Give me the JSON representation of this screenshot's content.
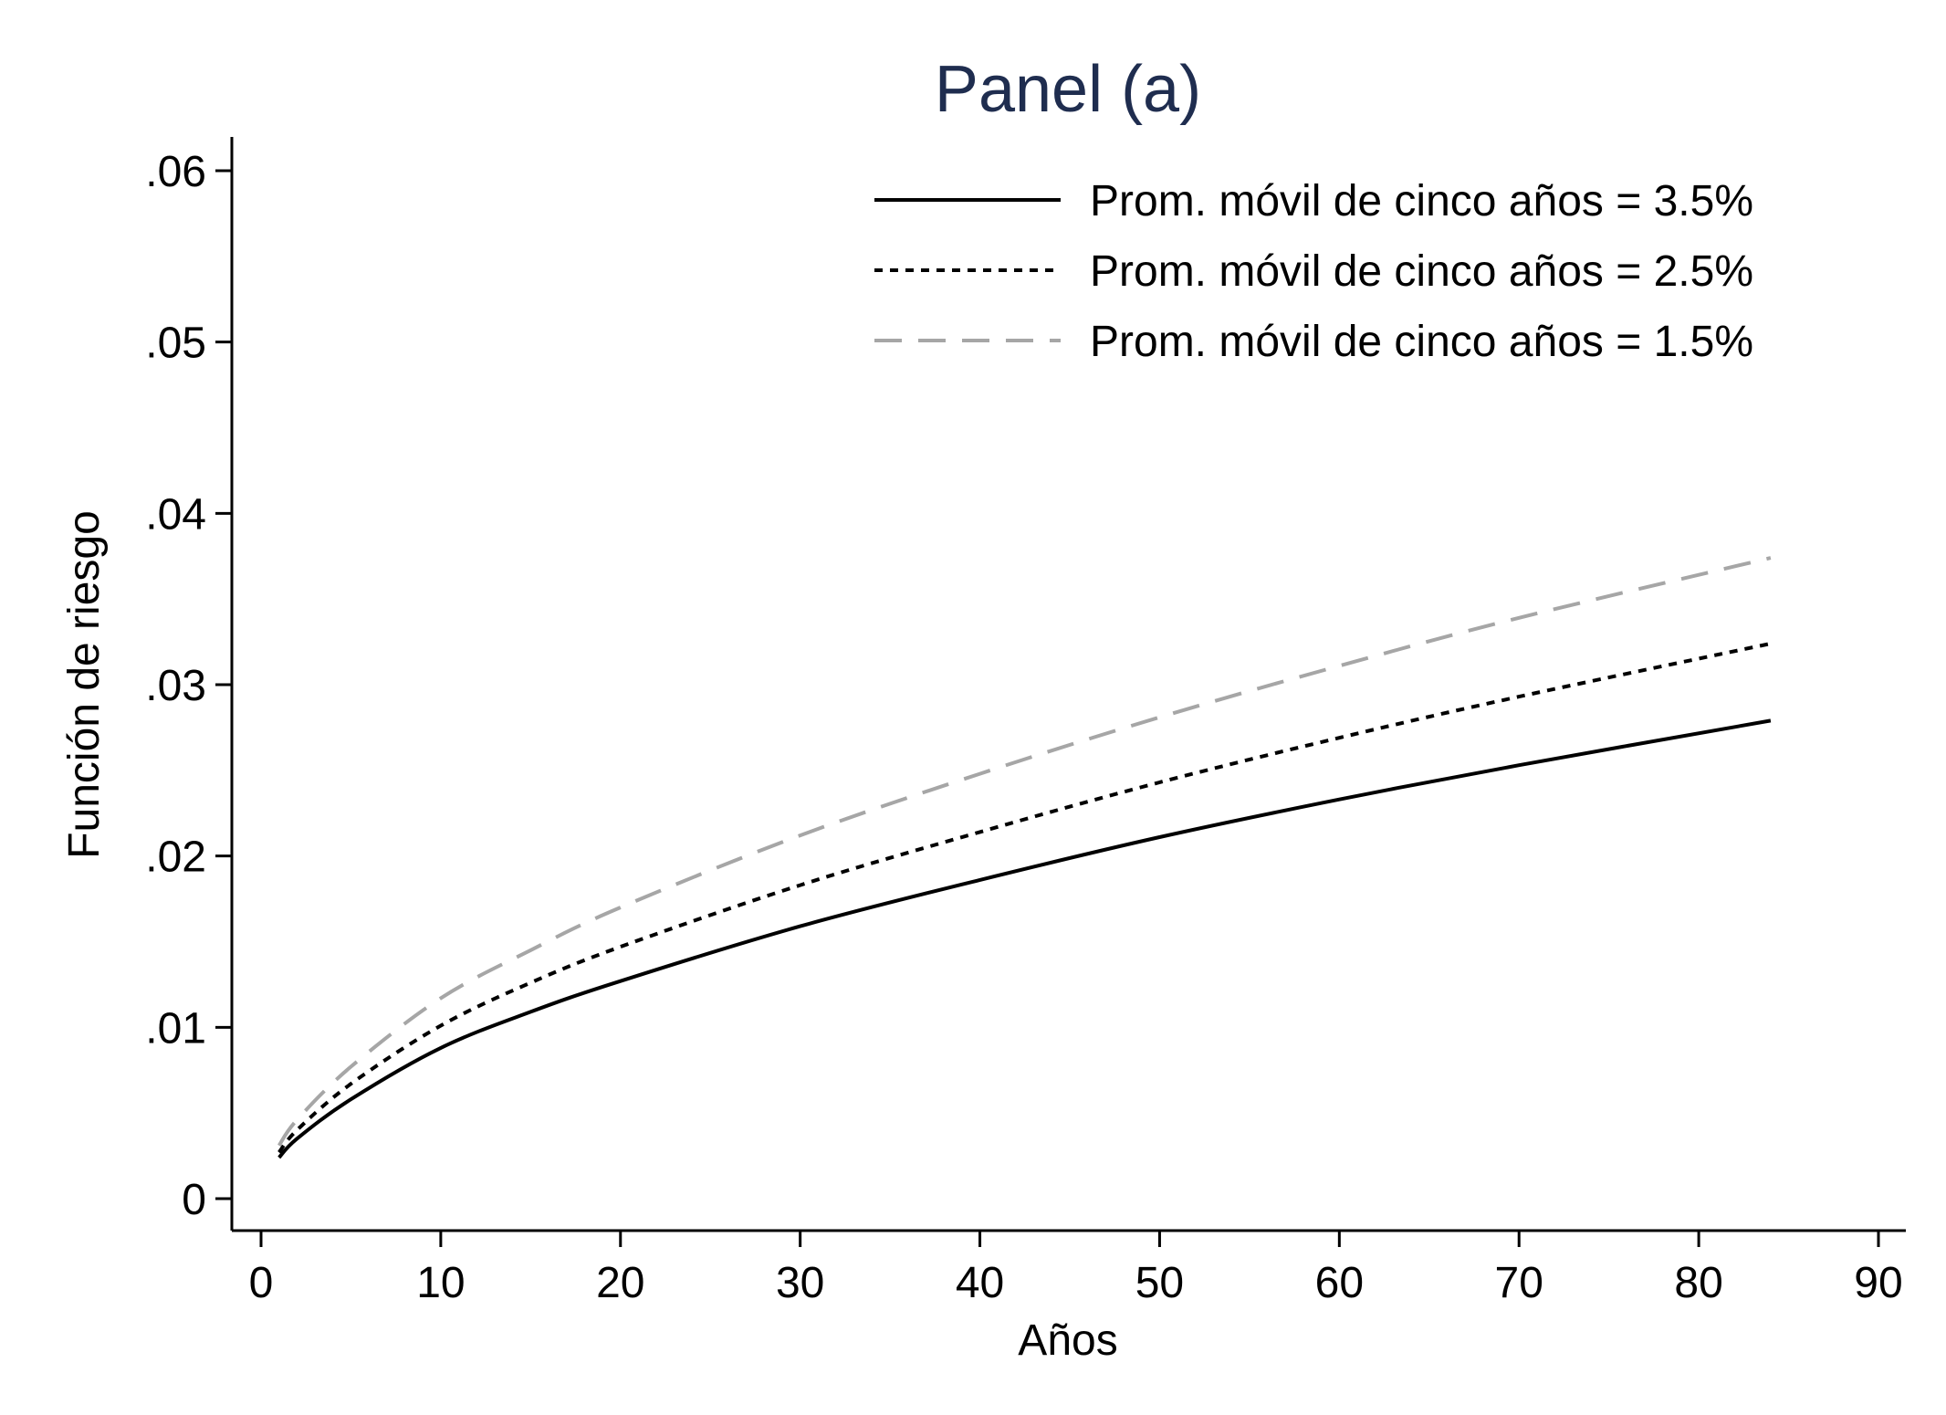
{
  "chart_data": {
    "type": "line",
    "title": "Panel (a)",
    "xlabel": "Años",
    "ylabel": "Función de riesgo",
    "xlim": [
      0,
      90
    ],
    "ylim": [
      0,
      0.06
    ],
    "xticks": [
      0,
      10,
      20,
      30,
      40,
      50,
      60,
      70,
      80,
      90
    ],
    "xtick_labels": [
      "0",
      "10",
      "20",
      "30",
      "40",
      "50",
      "60",
      "70",
      "80",
      "90"
    ],
    "yticks": [
      0,
      0.01,
      0.02,
      0.03,
      0.04,
      0.05,
      0.06
    ],
    "ytick_labels": [
      "0",
      ".01",
      ".02",
      ".03",
      ".04",
      ".05",
      ".06"
    ],
    "grid": false,
    "legend_position": "top-right",
    "x": [
      1,
      2,
      5,
      10,
      15,
      20,
      30,
      40,
      50,
      60,
      70,
      84
    ],
    "series": [
      {
        "name": "Prom. móvil de cinco años = 3.5%",
        "style": "solid",
        "color": "#000000",
        "values": [
          0.0024,
          0.0035,
          0.0058,
          0.0088,
          0.0109,
          0.0127,
          0.0159,
          0.0186,
          0.0211,
          0.0233,
          0.0253,
          0.0279
        ]
      },
      {
        "name": "Prom. móvil de cinco años = 2.5%",
        "style": "dotted",
        "color": "#000000",
        "values": [
          0.0027,
          0.004,
          0.0067,
          0.0101,
          0.0126,
          0.0147,
          0.0183,
          0.0214,
          0.0243,
          0.0269,
          0.0293,
          0.0324
        ]
      },
      {
        "name": "Prom. móvil de cinco años = 1.5%",
        "style": "dashed",
        "color": "#a6a6a6",
        "values": [
          0.0031,
          0.0046,
          0.0077,
          0.0117,
          0.0145,
          0.017,
          0.0212,
          0.0248,
          0.0281,
          0.0311,
          0.0339,
          0.0374
        ]
      }
    ]
  }
}
